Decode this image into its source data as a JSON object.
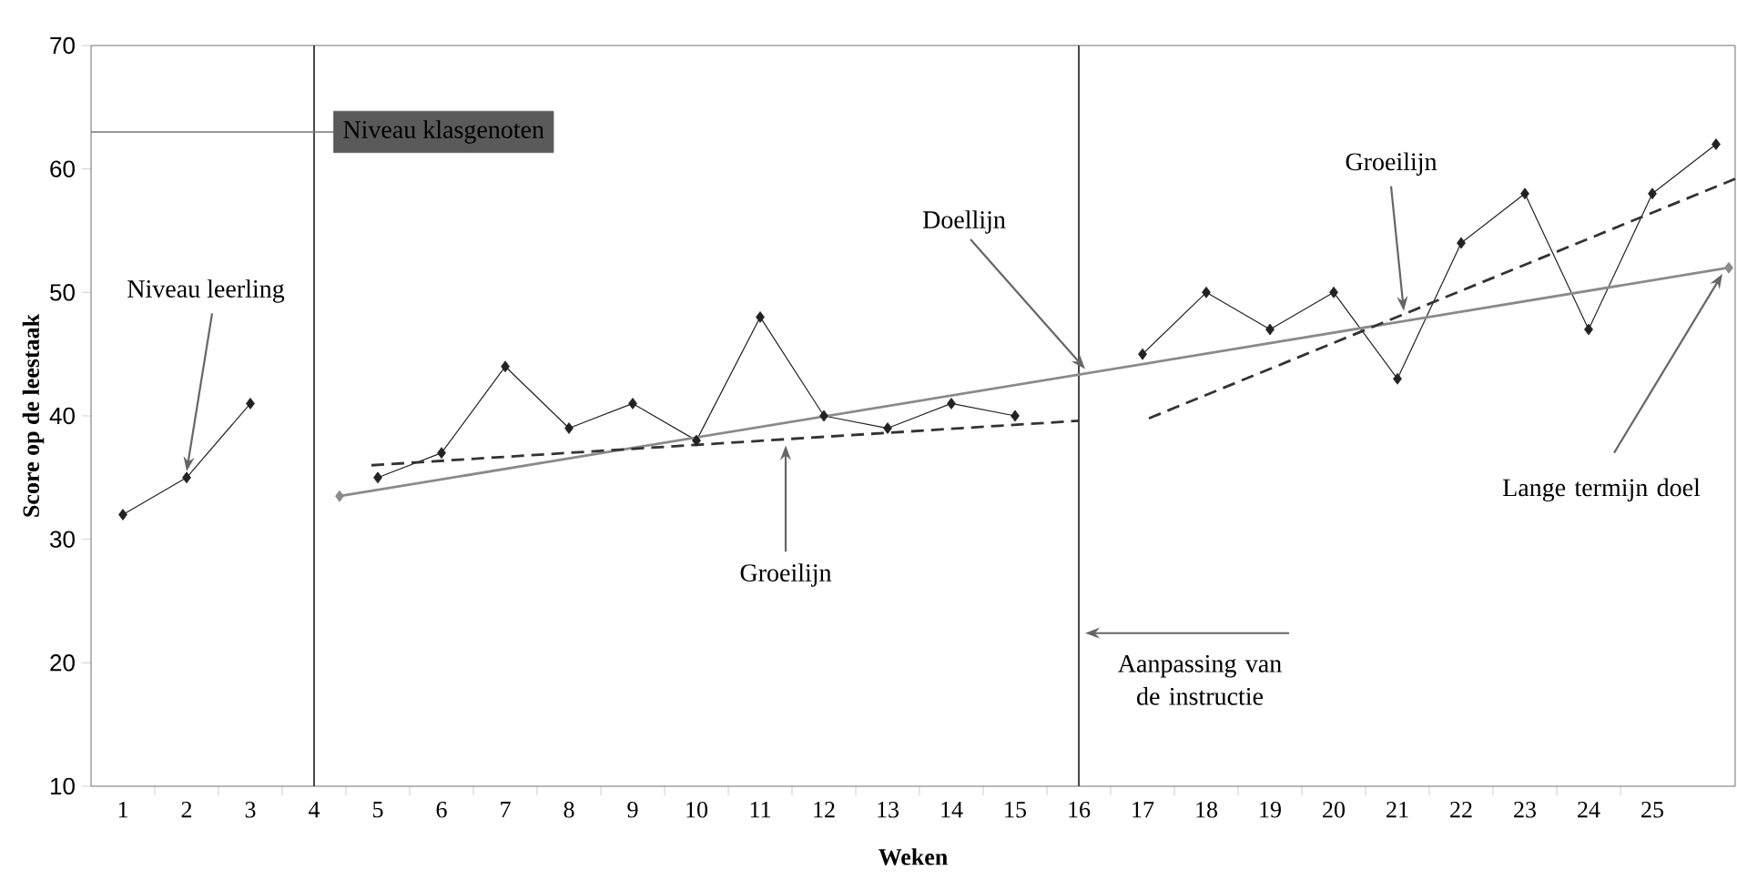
{
  "chart_data": {
    "type": "line",
    "xlabel": "Weken",
    "ylabel": "Score op de leestaak",
    "x": [
      1,
      2,
      3,
      4,
      5,
      6,
      7,
      8,
      9,
      10,
      11,
      12,
      13,
      14,
      15,
      16,
      17,
      18,
      19,
      20,
      21,
      22,
      23,
      24,
      25,
      26
    ],
    "series": [
      {
        "color": "#222222",
        "marker": "diamond",
        "values": [
          32,
          35,
          41,
          null,
          35,
          37,
          44,
          39,
          41,
          38,
          48,
          40,
          39,
          41,
          40,
          null,
          45,
          50,
          47,
          50,
          43,
          54,
          58,
          47,
          58,
          62
        ]
      },
      {
        "color": "#8a8a8a",
        "marker": "diamond",
        "x": [
          4.4,
          26.2
        ],
        "values": [
          33.5,
          52
        ]
      },
      {
        "color": "#333333",
        "line_style": "dashed",
        "marker": "none",
        "x": [
          4.9,
          16
        ],
        "values": [
          36,
          39.6
        ]
      },
      {
        "color": "#333333",
        "line_style": "dashed",
        "marker": "none",
        "x": [
          17.1,
          26.3
        ],
        "values": [
          39.8,
          59.2
        ]
      }
    ],
    "xlim": [
      0.5,
      26.3
    ],
    "ylim": [
      10,
      70
    ],
    "xticks": [
      1,
      2,
      3,
      4,
      5,
      6,
      7,
      8,
      9,
      10,
      11,
      12,
      13,
      14,
      15,
      16,
      17,
      18,
      19,
      20,
      21,
      22,
      23,
      24,
      25
    ],
    "yticks": [
      10,
      20,
      30,
      40,
      50,
      60,
      70
    ],
    "ref_lines": [
      {
        "axis": "x",
        "value": 4,
        "color": "#333333"
      },
      {
        "axis": "x",
        "value": 16,
        "color": "#333333"
      },
      {
        "axis": "y",
        "value": 63,
        "label": "Niveau klasgenoten",
        "color": "#777777"
      }
    ],
    "annotations": [
      {
        "text": "Niveau leerling",
        "x": 2,
        "y": 35.5
      },
      {
        "text": "Doellijn",
        "x": 16.1,
        "y": 43.8
      },
      {
        "text": "Groeilijn",
        "x": 11.4,
        "y": 37.6
      },
      {
        "text": "Groeilijn",
        "x": 21.1,
        "y": 48.5
      },
      {
        "text": "Aanpassing van de instructie",
        "x": 16.1,
        "y": 22.4
      },
      {
        "text": "Lange termijn doel",
        "x": 26.1,
        "y": 51.5
      }
    ],
    "grid": false
  }
}
